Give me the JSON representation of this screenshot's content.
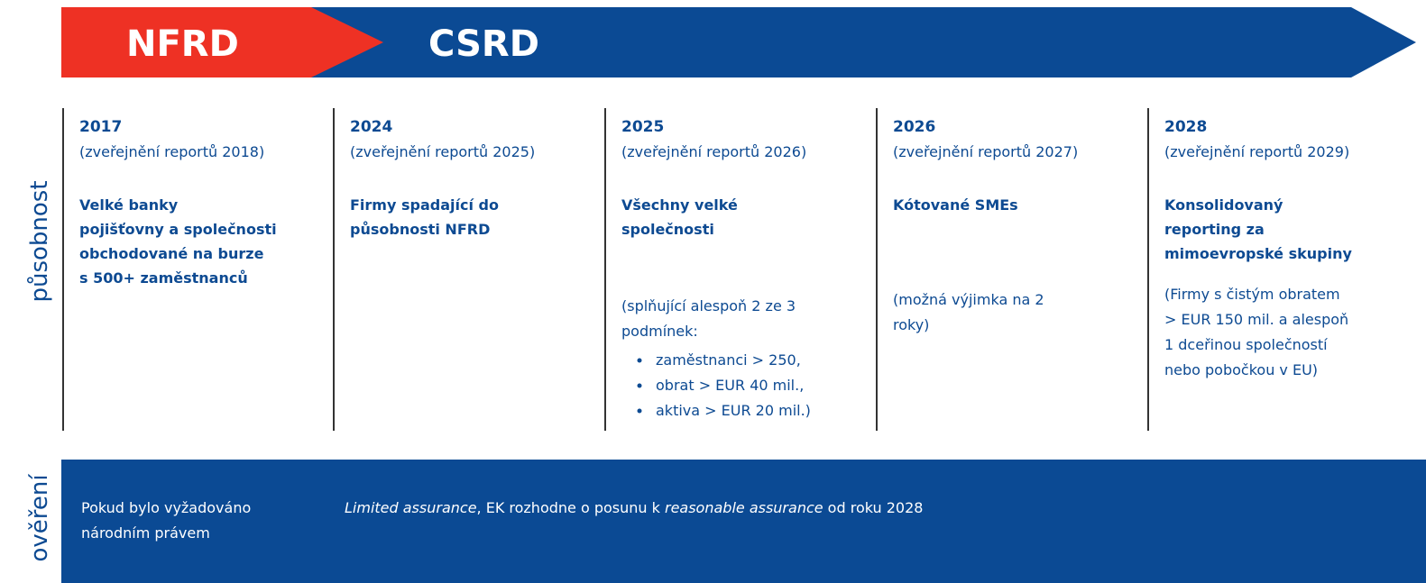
{
  "banner": {
    "left": "NFRD",
    "right": "CSRD"
  },
  "side_labels": [
    "působnost",
    "ověření"
  ],
  "columns": [
    {
      "year": "2017",
      "subtitle": "(zveřejnění reportů 2018)",
      "description": [
        "Velké banky",
        "pojišťovny a společnosti",
        "obchodované na burze",
        "s 500+ zaměstnanců"
      ],
      "note": [],
      "bullets": []
    },
    {
      "year": "2024",
      "subtitle": "(zveřejnění reportů 2025)",
      "description": [
        "Firmy spadající do",
        "působnosti NFRD"
      ],
      "note": [],
      "bullets": []
    },
    {
      "year": "2025",
      "subtitle": "(zveřejnění reportů 2026)",
      "description": [
        "Všechny velké",
        "společnosti"
      ],
      "note": [
        "(splňující alespoň 2 ze 3",
        "podmínek:"
      ],
      "bullets": [
        "zaměstnanci > 250,",
        "obrat > EUR 40 mil.,",
        "aktiva > EUR 20 mil.)"
      ]
    },
    {
      "year": "2026",
      "subtitle": "(zveřejnění reportů 2027)",
      "description": [
        "Kótované SMEs"
      ],
      "note": [
        "(možná výjimka na 2",
        "roky)"
      ],
      "bullets": []
    },
    {
      "year": "2028",
      "subtitle": "(zveřejnění reportů 2029)",
      "description": [
        "Konsolidovaný",
        "reporting za",
        "mimoevropské skupiny"
      ],
      "note": [
        "(Firmy s čistým obratem",
        "> EUR 150 mil. a alespoň",
        "1 dceřinou společností",
        "nebo pobočkou v EU)"
      ],
      "bullets": []
    }
  ],
  "assurance": {
    "left": [
      "Pokud bylo vyžadováno",
      "národním právem"
    ],
    "right": [
      {
        "text": "Limited assurance",
        "italic": true
      },
      {
        "text": ", EK rozhodne o posunu k ",
        "italic": false
      },
      {
        "text": "reasonable assurance",
        "italic": true
      },
      {
        "text": " od roku 2028",
        "italic": false
      }
    ]
  }
}
